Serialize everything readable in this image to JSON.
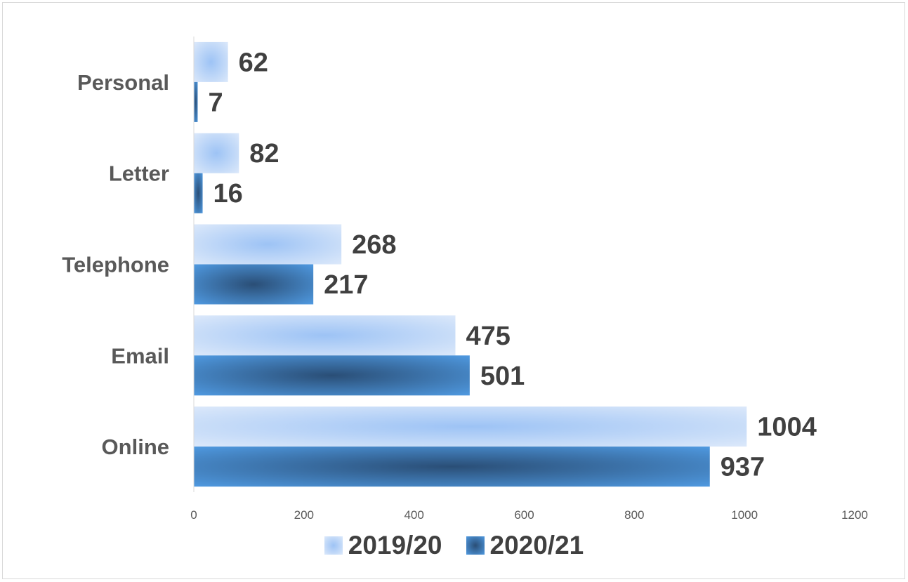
{
  "chart_data": {
    "type": "bar",
    "orientation": "horizontal",
    "categories": [
      "Personal",
      "Letter",
      "Telephone",
      "Email",
      "Online"
    ],
    "series": [
      {
        "name": "2019/20",
        "values": [
          62,
          82,
          268,
          475,
          1004
        ],
        "color": "#9dc3f5"
      },
      {
        "name": "2020/21",
        "values": [
          7,
          16,
          217,
          501,
          937
        ],
        "color": "#3f7fc2"
      }
    ],
    "xlim": [
      0,
      1200
    ],
    "xticks": [
      "0",
      "200",
      "400",
      "600",
      "800",
      "1000",
      "1200"
    ],
    "grid": false,
    "legend_position": "bottom"
  }
}
